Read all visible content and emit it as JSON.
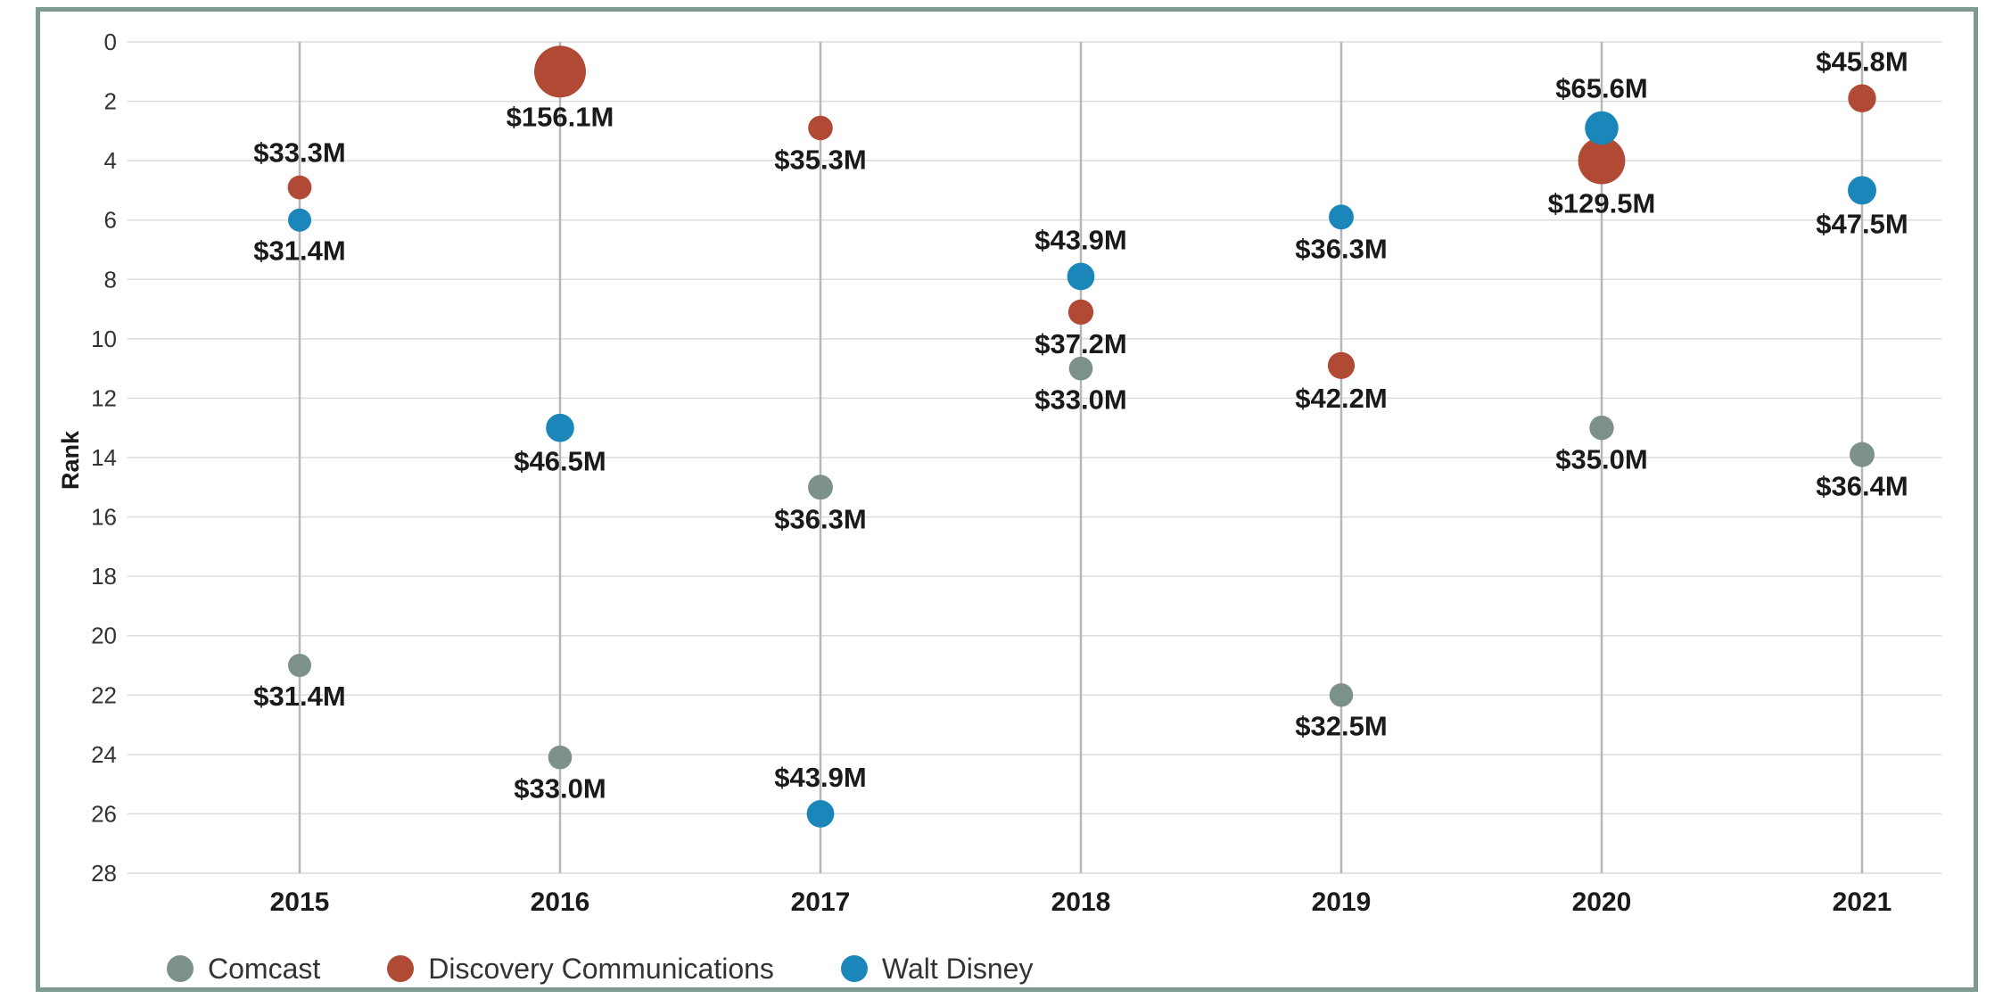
{
  "chart_data": {
    "type": "scatter",
    "ylabel": "Rank",
    "xlabel": "",
    "categories": [
      "2015",
      "2016",
      "2017",
      "2018",
      "2019",
      "2020",
      "2021"
    ],
    "y_ticks": [
      "0",
      "2",
      "4",
      "6",
      "8",
      "10",
      "12",
      "14",
      "16",
      "18",
      "20",
      "22",
      "24",
      "26",
      "28"
    ],
    "ylim": [
      0,
      28
    ],
    "y_inverted": true,
    "grid": "horizontal and vertical",
    "legend_position": "bottom-left",
    "series": [
      {
        "name": "Comcast",
        "color": "#7d918b",
        "points": [
          {
            "x": "2015",
            "rank": 21,
            "value": 31.4,
            "label": "$31.4M",
            "label_pos": "below"
          },
          {
            "x": "2016",
            "rank": 24.1,
            "value": 33.0,
            "label": "$33.0M",
            "label_pos": "below"
          },
          {
            "x": "2017",
            "rank": 15,
            "value": 36.3,
            "label": "$36.3M",
            "label_pos": "below"
          },
          {
            "x": "2018",
            "rank": 11,
            "value": 33.0,
            "label": "$33.0M",
            "label_pos": "below"
          },
          {
            "x": "2019",
            "rank": 22,
            "value": 32.5,
            "label": "$32.5M",
            "label_pos": "below"
          },
          {
            "x": "2020",
            "rank": 13,
            "value": 35.0,
            "label": "$35.0M",
            "label_pos": "below"
          },
          {
            "x": "2021",
            "rank": 13.9,
            "value": 36.4,
            "label": "$36.4M",
            "label_pos": "below"
          }
        ]
      },
      {
        "name": "Discovery Communications",
        "color": "#b04a35",
        "points": [
          {
            "x": "2015",
            "rank": 4.9,
            "value": 33.3,
            "label": "$33.3M",
            "label_pos": "above"
          },
          {
            "x": "2016",
            "rank": 1,
            "value": 156.1,
            "label": "$156.1M",
            "label_pos": "below"
          },
          {
            "x": "2017",
            "rank": 2.9,
            "value": 35.3,
            "label": "$35.3M",
            "label_pos": "below"
          },
          {
            "x": "2018",
            "rank": 9.1,
            "value": 37.2,
            "label": "$37.2M",
            "label_pos": "below"
          },
          {
            "x": "2019",
            "rank": 10.9,
            "value": 42.2,
            "label": "$42.2M",
            "label_pos": "below"
          },
          {
            "x": "2020",
            "rank": 4,
            "value": 129.5,
            "label": "$129.5M",
            "label_pos": "below"
          },
          {
            "x": "2021",
            "rank": 1.9,
            "value": 45.8,
            "label": "$45.8M",
            "label_pos": "above"
          }
        ]
      },
      {
        "name": "Walt Disney",
        "color": "#1a86b9",
        "points": [
          {
            "x": "2015",
            "rank": 6,
            "value": 31.4,
            "label": "$31.4M",
            "label_pos": "below"
          },
          {
            "x": "2016",
            "rank": 13,
            "value": 46.5,
            "label": "$46.5M",
            "label_pos": "below"
          },
          {
            "x": "2017",
            "rank": 26,
            "value": 43.9,
            "label": "$43.9M",
            "label_pos": "above"
          },
          {
            "x": "2018",
            "rank": 7.9,
            "value": 43.9,
            "label": "$43.9M",
            "label_pos": "above"
          },
          {
            "x": "2019",
            "rank": 5.9,
            "value": 36.3,
            "label": "$36.3M",
            "label_pos": "below"
          },
          {
            "x": "2020",
            "rank": 2.9,
            "value": 65.6,
            "label": "$65.6M",
            "label_pos": "above"
          },
          {
            "x": "2021",
            "rank": 5,
            "value": 47.5,
            "label": "$47.5M",
            "label_pos": "below"
          }
        ]
      }
    ]
  }
}
